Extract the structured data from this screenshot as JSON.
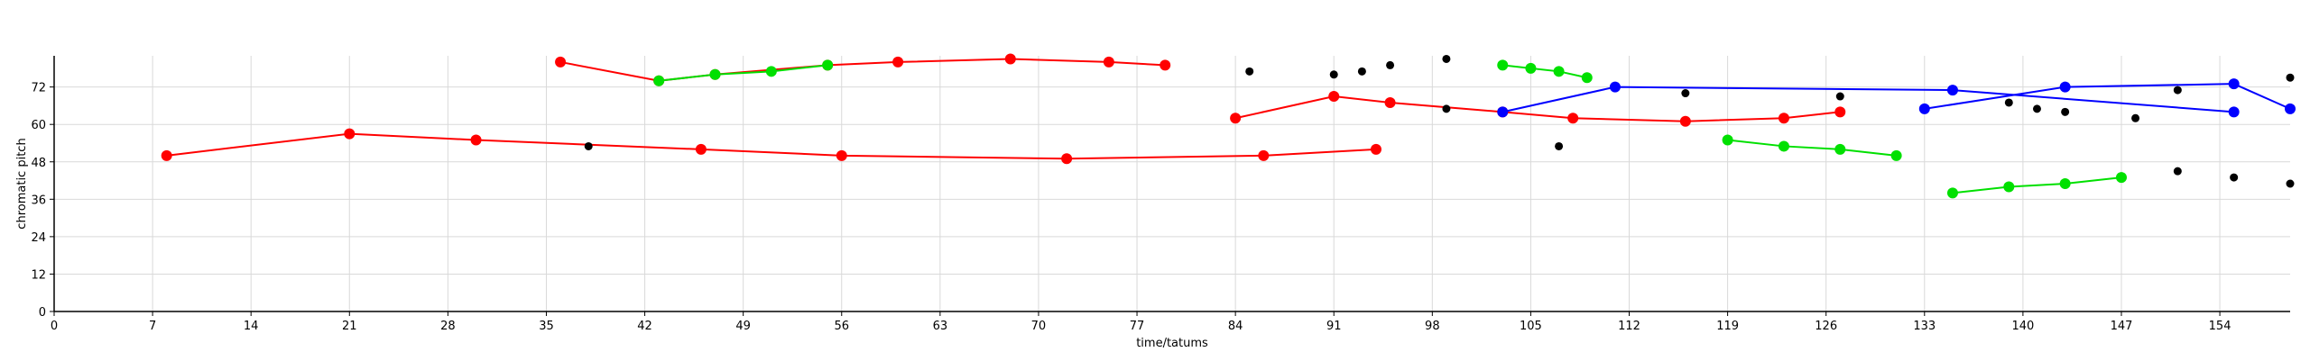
{
  "chart_data": {
    "type": "scatter",
    "xlabel": "time/tatums",
    "ylabel": "chromatic pitch",
    "xlim": [
      0,
      159
    ],
    "ylim": [
      0,
      82
    ],
    "x_ticks": [
      0,
      7,
      14,
      21,
      28,
      35,
      42,
      49,
      56,
      63,
      70,
      77,
      84,
      91,
      98,
      105,
      112,
      119,
      126,
      133,
      140,
      147,
      154
    ],
    "y_ticks": [
      0,
      12,
      24,
      36,
      48,
      60,
      72
    ],
    "grid": true,
    "colors": {
      "red": "#ff0000",
      "green": "#00e000",
      "blue": "#0000ff",
      "black": "#000000",
      "olive": "#8a6a00"
    },
    "series": [
      {
        "color": "red",
        "kind": "line",
        "points": [
          [
            8,
            50
          ],
          [
            21,
            57
          ],
          [
            30,
            55
          ],
          [
            46,
            52
          ],
          [
            56,
            50
          ],
          [
            72,
            49
          ],
          [
            86,
            50
          ],
          [
            94,
            52
          ]
        ]
      },
      {
        "color": "red",
        "kind": "line",
        "points": [
          [
            36,
            80
          ],
          [
            43,
            74
          ],
          [
            47,
            76
          ],
          [
            55,
            79
          ],
          [
            60,
            80
          ],
          [
            68,
            81
          ],
          [
            75,
            80
          ],
          [
            79,
            79
          ]
        ]
      },
      {
        "color": "red",
        "kind": "line",
        "points": [
          [
            84,
            62
          ],
          [
            91,
            69
          ],
          [
            95,
            67
          ],
          [
            103,
            64
          ],
          [
            108,
            62
          ],
          [
            116,
            61
          ],
          [
            123,
            62
          ],
          [
            127,
            64
          ]
        ]
      },
      {
        "color": "green",
        "kind": "line",
        "points": [
          [
            43,
            74
          ],
          [
            47,
            76
          ],
          [
            51,
            77
          ],
          [
            55,
            79
          ]
        ]
      },
      {
        "color": "green",
        "kind": "line",
        "points": [
          [
            103,
            79
          ],
          [
            105,
            78
          ],
          [
            107,
            77
          ],
          [
            109,
            75
          ]
        ]
      },
      {
        "color": "green",
        "kind": "line",
        "points": [
          [
            119,
            55
          ],
          [
            123,
            53
          ],
          [
            127,
            52
          ],
          [
            131,
            50
          ]
        ]
      },
      {
        "color": "green",
        "kind": "line",
        "points": [
          [
            135,
            38
          ],
          [
            139,
            40
          ],
          [
            143,
            41
          ],
          [
            147,
            43
          ]
        ]
      },
      {
        "color": "blue",
        "kind": "line",
        "points": [
          [
            103,
            64
          ],
          [
            111,
            72
          ],
          [
            135,
            71
          ],
          [
            155,
            64
          ]
        ]
      },
      {
        "color": "blue",
        "kind": "line",
        "points": [
          [
            133,
            65
          ],
          [
            143,
            72
          ],
          [
            155,
            73
          ],
          [
            159,
            65
          ]
        ]
      },
      {
        "color": "black",
        "kind": "points",
        "points": [
          [
            38,
            53
          ],
          [
            85,
            77
          ],
          [
            91,
            76
          ],
          [
            93,
            77
          ],
          [
            95,
            79
          ],
          [
            99,
            81
          ],
          [
            99,
            65
          ],
          [
            107,
            53
          ],
          [
            116,
            70
          ],
          [
            127,
            69
          ],
          [
            139,
            67
          ],
          [
            141,
            65
          ],
          [
            143,
            64
          ],
          [
            148,
            62
          ],
          [
            151,
            71
          ],
          [
            151,
            45
          ],
          [
            155,
            43
          ],
          [
            159,
            75
          ],
          [
            159,
            41
          ]
        ]
      }
    ]
  }
}
